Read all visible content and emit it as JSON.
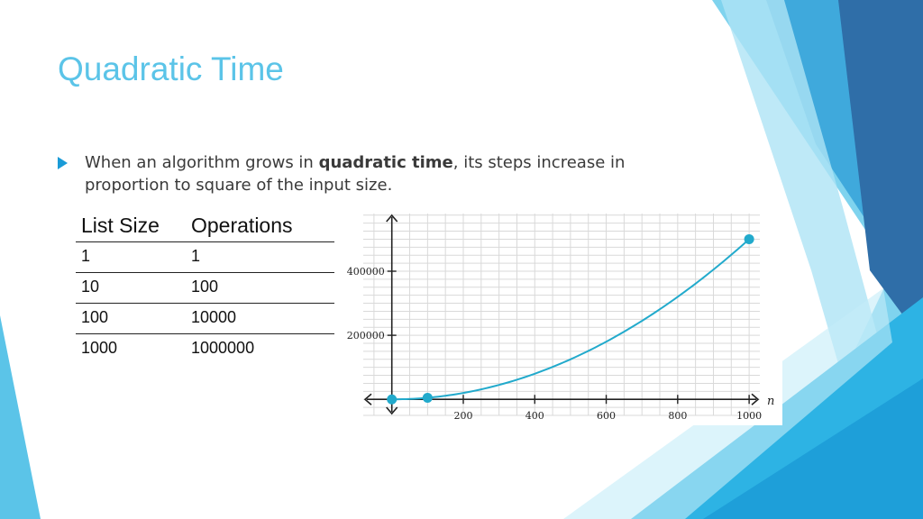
{
  "slide": {
    "title": "Quadratic Time",
    "bullet": {
      "pre": "When an algorithm grows in ",
      "bold": "quadratic time",
      "post": ", its steps increase in proportion to square of the input size."
    }
  },
  "table": {
    "headers": [
      "List Size",
      "Operations"
    ],
    "rows": [
      [
        "1",
        "1"
      ],
      [
        "10",
        "100"
      ],
      [
        "100",
        "10000"
      ],
      [
        "1000",
        "1000000"
      ]
    ]
  },
  "chart_data": {
    "type": "line",
    "xlabel": "n",
    "ylabel": "",
    "xlim": [
      -80,
      1030
    ],
    "ylim": [
      -50000,
      580000
    ],
    "x_ticks": [
      200,
      400,
      600,
      800,
      1000
    ],
    "y_ticks": [
      200000,
      400000
    ],
    "grid": true,
    "curve": "y = x^2 / 2",
    "points": [
      {
        "x": 0,
        "y": 0
      },
      {
        "x": 100,
        "y": 5000
      },
      {
        "x": 1000,
        "y": 500000
      }
    ],
    "colors": {
      "line": "#22aacc",
      "grid": "#d9d9d9",
      "axis": "#222222"
    }
  }
}
